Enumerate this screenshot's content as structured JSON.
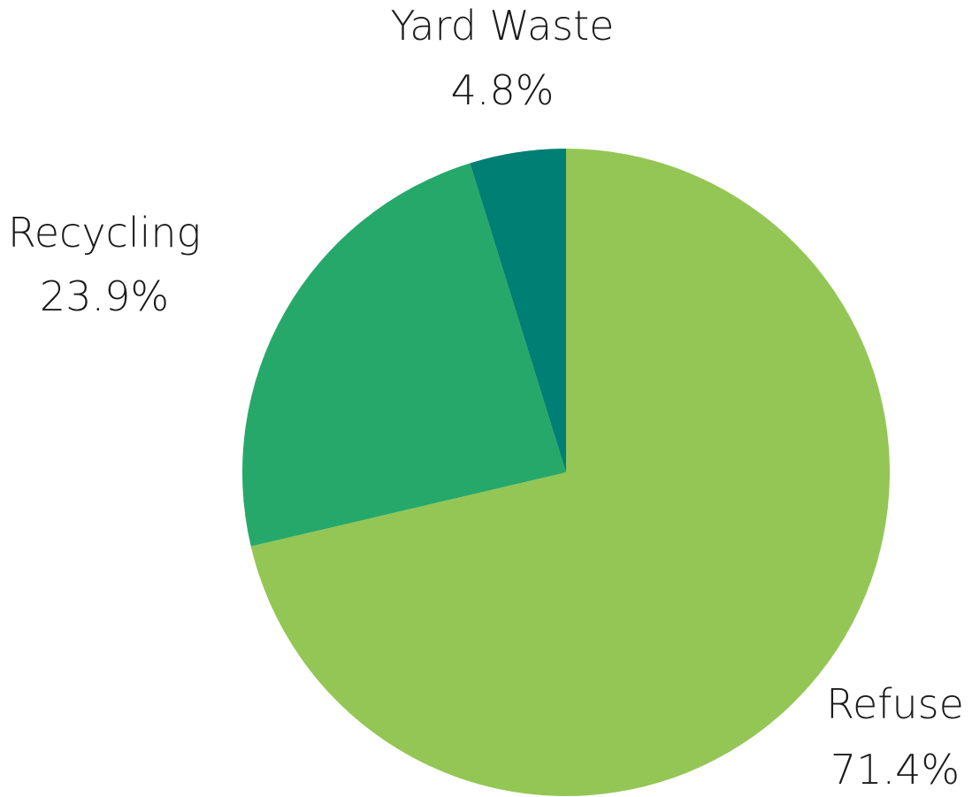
{
  "chart_data": {
    "type": "pie",
    "title": "",
    "slices": [
      {
        "label": "Refuse",
        "percent_label": "71.4%",
        "value": 71.4,
        "color": "#94c655"
      },
      {
        "label": "Recycling",
        "percent_label": "23.9%",
        "value": 23.9,
        "color": "#27a86b"
      },
      {
        "label": "Yard Waste",
        "percent_label": "4.8%",
        "value": 4.8,
        "color": "#007f74"
      }
    ],
    "start_angle_deg": 0,
    "direction": "clockwise",
    "legend": "none"
  }
}
